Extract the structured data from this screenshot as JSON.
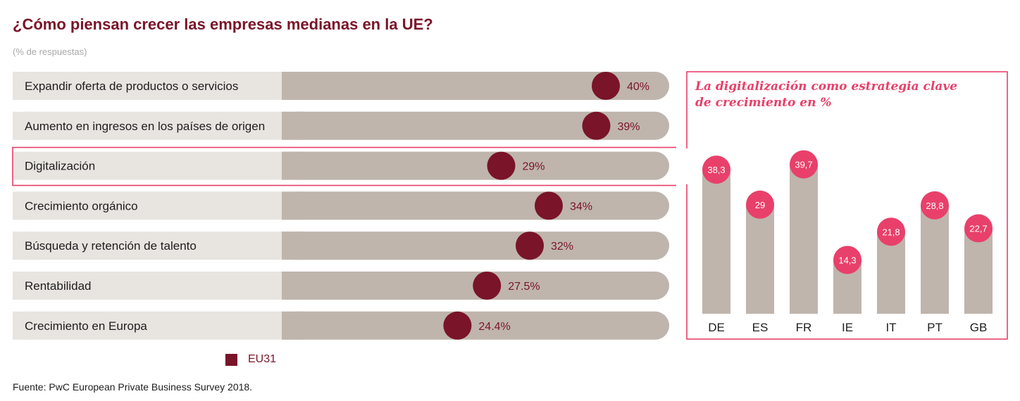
{
  "title": "¿Cómo piensan crecer las empresas medianas en la UE?",
  "subtitle": "(% de respuestas)",
  "source": "Fuente: PwC European Private Business Survey 2018.",
  "colors": {
    "accent": "#7a1428",
    "pink": "#e8406a",
    "track": "#e8e4e0",
    "bar": "#bfb5ad",
    "text": "#1e1e1e"
  },
  "chart_data": [
    {
      "type": "bar",
      "orientation": "horizontal",
      "title": "¿Cómo piensan crecer las empresas medianas en la UE?",
      "subtitle": "(% de respuestas)",
      "categories": [
        "Expandir oferta de productos o servicios",
        "Aumento en ingresos en los países de origen",
        "Digitalización",
        "Crecimiento orgánico",
        "Búsqueda y retención de talento",
        "Rentabilidad",
        "Crecimiento en Europa"
      ],
      "values": [
        40,
        39,
        29,
        34,
        32,
        27.5,
        24.4
      ],
      "value_labels": [
        "40%",
        "39%",
        "29%",
        "34%",
        "32%",
        "27.5%",
        "24.4%"
      ],
      "highlighted_category": "Digitalización",
      "series": [
        {
          "name": "EU31",
          "values": [
            40,
            39,
            29,
            34,
            32,
            27.5,
            24.4
          ]
        }
      ],
      "legend": "bottom",
      "grid": false
    },
    {
      "type": "bar",
      "orientation": "vertical",
      "title": "La digitalización como estrategia clave de crecimiento en %",
      "title_lines": [
        "La digitalización como estrategia clave",
        "de crecimiento en %"
      ],
      "categories": [
        "DE",
        "ES",
        "FR",
        "IE",
        "IT",
        "PT",
        "GB"
      ],
      "highlighted_category": "ES",
      "values": [
        38.3,
        29,
        39.7,
        14.3,
        21.8,
        28.8,
        22.7
      ],
      "value_labels": [
        "38,3",
        "29",
        "39,7",
        "14,3",
        "21,8",
        "28,8",
        "22,7"
      ],
      "grid": false
    }
  ],
  "legend": {
    "label": "EU31"
  }
}
